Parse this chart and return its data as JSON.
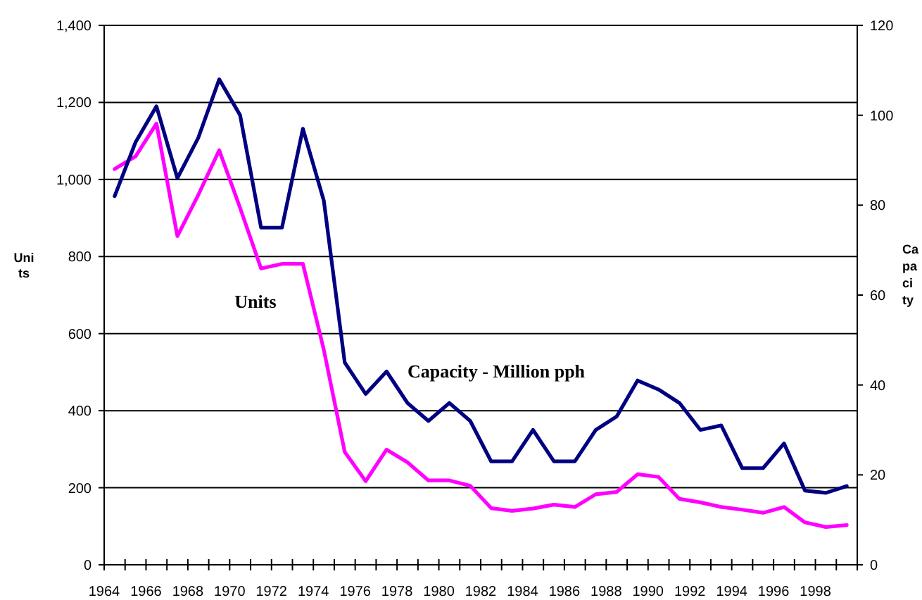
{
  "chart_data": {
    "type": "line",
    "ylabel": "Units",
    "y2label": "Capacity",
    "x": [
      1964.5,
      1965.5,
      1966.5,
      1967.5,
      1968.5,
      1969.5,
      1970.5,
      1971.5,
      1972.5,
      1973.5,
      1974.5,
      1975.5,
      1976.5,
      1977.5,
      1978.5,
      1979.5,
      1980.5,
      1981.5,
      1982.5,
      1983.5,
      1984.5,
      1985.5,
      1986.5,
      1987.5,
      1988.5,
      1989.5,
      1990.5,
      1991.5,
      1992.5,
      1993.5,
      1994.5,
      1995.5,
      1996.5,
      1997.5,
      1998.5,
      1999.5
    ],
    "series": [
      {
        "name": "Units",
        "color": "#ff00ff",
        "values": [
          1027,
          1060,
          1145,
          853,
          960,
          1076,
          926,
          769,
          781,
          781,
          558,
          293,
          217,
          299,
          266,
          219,
          219,
          205,
          147,
          140,
          146,
          156,
          150,
          183,
          189,
          235,
          228,
          171,
          162,
          150,
          143,
          135,
          150,
          110,
          98,
          103
        ]
      },
      {
        "name": "Capacity - Million pph",
        "color": "#000080",
        "axis": "y2",
        "values": [
          82,
          94,
          102,
          86,
          95,
          108,
          100,
          75,
          75,
          97,
          81,
          45,
          38,
          43,
          36,
          32,
          36,
          32,
          23,
          23,
          30,
          23,
          23,
          30,
          33,
          41,
          39,
          36,
          30,
          31,
          21.5,
          21.5,
          27,
          16.5,
          16,
          17.5
        ]
      }
    ],
    "xlim": [
      1964,
      2000
    ],
    "xticks": [
      1964,
      {
        "value": 1965,
        "label": null
      },
      1966,
      {
        "value": 1967,
        "label": null
      },
      1968,
      {
        "value": 1969,
        "label": null
      },
      1970,
      {
        "value": 1971,
        "label": null
      },
      1972,
      {
        "value": 1973,
        "label": null
      },
      1974,
      {
        "value": 1975,
        "label": null
      },
      1976,
      {
        "value": 1977,
        "label": null
      },
      1978,
      {
        "value": 1979,
        "label": null
      },
      1980,
      {
        "value": 1981,
        "label": null
      },
      1982,
      {
        "value": 1983,
        "label": null
      },
      1984,
      {
        "value": 1985,
        "label": null
      },
      1986,
      {
        "value": 1987,
        "label": null
      },
      1988,
      {
        "value": 1989,
        "label": null
      },
      1990,
      {
        "value": 1991,
        "label": null
      },
      1992,
      {
        "value": 1993,
        "label": null
      },
      1994,
      {
        "value": 1995,
        "label": null
      },
      1996,
      {
        "value": 1997,
        "label": null
      },
      1998,
      {
        "value": 1999,
        "label": null
      },
      {
        "value": 2000,
        "label": null
      }
    ],
    "ylim": [
      0,
      1400
    ],
    "yticks": [
      0,
      200,
      400,
      600,
      800,
      {
        "value": 1000,
        "label": "1,000"
      },
      {
        "value": 1200,
        "label": "1,200"
      },
      {
        "value": 1400,
        "label": "1,400"
      }
    ],
    "y2lim": [
      0,
      120
    ],
    "y2ticks": [
      0,
      20,
      40,
      60,
      80,
      100,
      120
    ],
    "grid": "y",
    "marker": "none",
    "line_style": "solid"
  }
}
